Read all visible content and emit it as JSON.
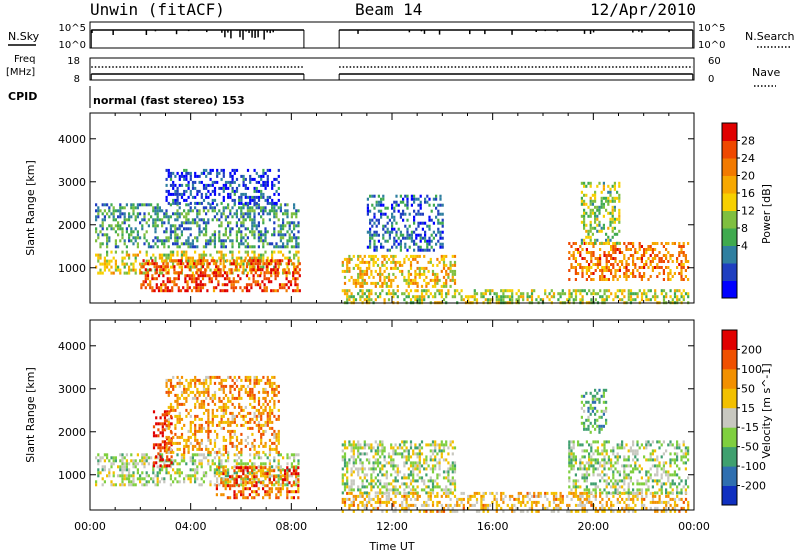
{
  "header": {
    "station": "Unwin (fitACF)",
    "beam": "Beam 14",
    "date": "12/Apr/2010"
  },
  "top_panels": {
    "nsky_label": "N.Sky",
    "nsky_ticks": [
      "10^5",
      "10^0"
    ],
    "nsearch_label": "N.Search",
    "nsearch_ticks": [
      "10^5",
      "10^0"
    ],
    "freq_label": [
      "Freq",
      "[MHz]"
    ],
    "freq_ticks": [
      "18",
      "8"
    ],
    "nave_label": "Nave",
    "nave_ticks": [
      "60",
      "0"
    ],
    "cpid_label": "CPID",
    "cpid_text": "normal (fast stereo) 153"
  },
  "chart_data": [
    {
      "type": "heatmap",
      "name": "power",
      "ylabel": "Slant Range [km]",
      "ylim": [
        180,
        4600
      ],
      "yticks": [
        1000,
        2000,
        3000,
        4000
      ],
      "xlim": [
        0,
        24
      ],
      "xticks": [
        "00:00",
        "04:00",
        "08:00",
        "12:00",
        "16:00",
        "20:00",
        "00:00"
      ],
      "colorbar": {
        "label": "Power [dB]",
        "ticks": [
          "28",
          "24",
          "20",
          "16",
          "12",
          "8",
          "4"
        ],
        "colors": [
          "#0000ff",
          "#1f3fc0",
          "#2f7fa0",
          "#3faa4f",
          "#7fbf3f",
          "#f7d000",
          "#f7a800",
          "#f27a00",
          "#ef4800",
          "#e00000"
        ]
      },
      "data_gap_hours": [
        8.5,
        9.9
      ],
      "echo_regions": [
        {
          "t0": 0.2,
          "t1": 8.3,
          "r0": 900,
          "r1": 1400,
          "level": 0.55
        },
        {
          "t0": 2.0,
          "t1": 8.3,
          "r0": 500,
          "r1": 1200,
          "level": 0.85
        },
        {
          "t0": 0.2,
          "t1": 8.3,
          "r0": 1500,
          "r1": 2500,
          "level": 0.3
        },
        {
          "t0": 3.0,
          "t1": 7.5,
          "r0": 2500,
          "r1": 3300,
          "level": 0.15
        },
        {
          "t0": 10.0,
          "t1": 14.5,
          "r0": 600,
          "r1": 1300,
          "level": 0.6
        },
        {
          "t0": 10.0,
          "t1": 23.8,
          "r0": 180,
          "r1": 500,
          "level": 0.5
        },
        {
          "t0": 11.0,
          "t1": 14.0,
          "r0": 1400,
          "r1": 2700,
          "level": 0.2
        },
        {
          "t0": 19.0,
          "t1": 23.8,
          "r0": 700,
          "r1": 1600,
          "level": 0.75
        },
        {
          "t0": 19.5,
          "t1": 21.0,
          "r0": 1600,
          "r1": 3000,
          "level": 0.45
        }
      ]
    },
    {
      "type": "heatmap",
      "name": "velocity",
      "ylabel": "Slant Range [km]",
      "ylim": [
        180,
        4600
      ],
      "yticks": [
        1000,
        2000,
        3000,
        4000
      ],
      "xlim": [
        0,
        24
      ],
      "xlabel": "Time UT",
      "xticks": [
        "00:00",
        "04:00",
        "08:00",
        "12:00",
        "16:00",
        "20:00",
        "00:00"
      ],
      "colorbar": {
        "label": "Velocity [m s^-1]",
        "ticks": [
          "200",
          "100",
          "50",
          "15",
          "-15",
          "-50",
          "-100",
          "-200"
        ],
        "colors": [
          "#1030c0",
          "#2f6fb0",
          "#3fa06f",
          "#7fcf3f",
          "#c8c8c0",
          "#f2c000",
          "#f29000",
          "#ef5000",
          "#e00000"
        ]
      },
      "data_gap_hours": [
        8.5,
        9.9
      ],
      "echo_regions": [
        {
          "t0": 0.2,
          "t1": 8.3,
          "r0": 800,
          "r1": 1500,
          "level": 0.45
        },
        {
          "t0": 2.5,
          "t1": 3.2,
          "r0": 1200,
          "r1": 2500,
          "level": 0.95
        },
        {
          "t0": 3.0,
          "t1": 7.5,
          "r0": 1500,
          "r1": 3300,
          "level": 0.7
        },
        {
          "t0": 5.0,
          "t1": 8.3,
          "r0": 500,
          "r1": 1200,
          "level": 0.8
        },
        {
          "t0": 10.0,
          "t1": 23.8,
          "r0": 180,
          "r1": 600,
          "level": 0.62
        },
        {
          "t0": 10.0,
          "t1": 14.5,
          "r0": 600,
          "r1": 1800,
          "level": 0.45
        },
        {
          "t0": 19.0,
          "t1": 23.8,
          "r0": 600,
          "r1": 1800,
          "level": 0.43
        },
        {
          "t0": 19.5,
          "t1": 20.5,
          "r0": 2000,
          "r1": 3000,
          "level": 0.3
        }
      ]
    }
  ]
}
